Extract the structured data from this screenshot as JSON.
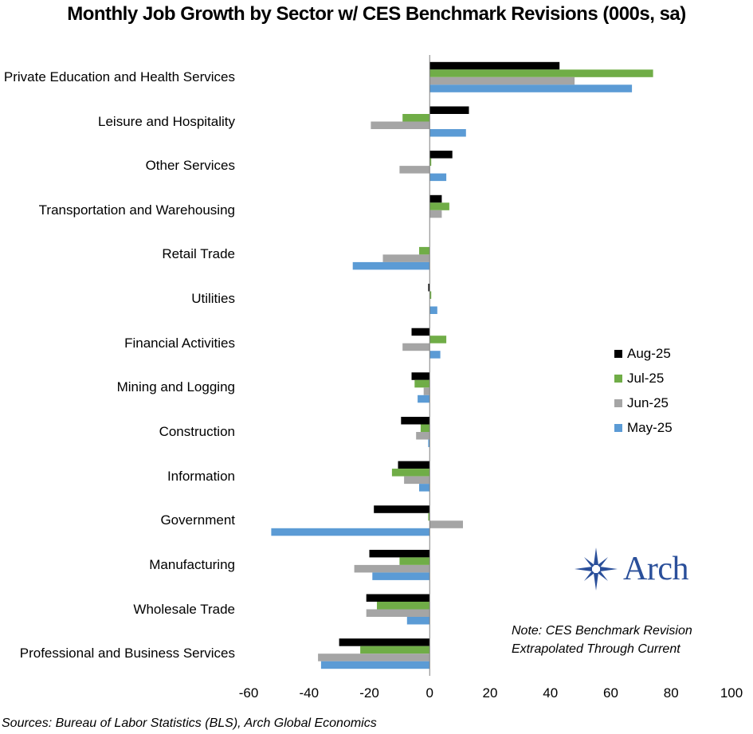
{
  "chart_data": {
    "type": "bar",
    "orientation": "horizontal",
    "title": "Monthly Job Growth by Sector w/ CES Benchmark Revisions (000s, sa)",
    "categories": [
      "Private Education and Health Services",
      "Leisure and Hospitality",
      "Other Services",
      "Transportation and Warehousing",
      "Retail Trade",
      "Utilities",
      "Financial Activities",
      "Mining and Logging",
      "Construction",
      "Information",
      "Government",
      "Manufacturing",
      "Wholesale Trade",
      "Professional and Business Services"
    ],
    "series": [
      {
        "name": "Aug-25",
        "color": "#000000",
        "values": [
          43,
          13,
          7.5,
          4,
          0,
          -0.5,
          -6,
          -6,
          -9.5,
          -10.5,
          -18.5,
          -20,
          -21,
          -30
        ]
      },
      {
        "name": "Jul-25",
        "color": "#70ad47",
        "values": [
          74,
          -9,
          0.5,
          6.5,
          -3.5,
          0.5,
          5.5,
          -5,
          -3,
          -12.5,
          -0.5,
          -10,
          -17.5,
          -23
        ]
      },
      {
        "name": "Jun-25",
        "color": "#a5a5a5",
        "values": [
          48,
          -19.5,
          -10,
          4,
          -15.5,
          0,
          -9,
          -2,
          -4.5,
          -8.5,
          11,
          -25,
          -21,
          -37
        ]
      },
      {
        "name": "May-25",
        "color": "#5b9bd5",
        "values": [
          67,
          12,
          5.5,
          0,
          -25.5,
          2.5,
          3.5,
          -4,
          -0.5,
          -3.5,
          -52.5,
          -19,
          -7.5,
          -36
        ]
      }
    ],
    "xlim": [
      -60,
      100
    ],
    "xticks": [
      -60,
      -40,
      -20,
      0,
      20,
      40,
      60,
      80,
      100
    ],
    "xtick_labels": [
      "-60",
      "-40",
      "-20",
      "0",
      "20",
      "40",
      "60",
      "80",
      "100"
    ],
    "xlabel": "",
    "ylabel": "",
    "legend_position": "right",
    "grid": false
  },
  "legend": {
    "items": [
      {
        "label": "Aug-25",
        "color": "#000000"
      },
      {
        "label": "Jul-25",
        "color": "#70ad47"
      },
      {
        "label": "Jun-25",
        "color": "#a5a5a5"
      },
      {
        "label": "May-25",
        "color": "#5b9bd5"
      }
    ]
  },
  "note": {
    "line1": "Note: CES Benchmark Revision",
    "line2": "Extrapolated Through Current"
  },
  "source": "Sources: Bureau of Labor Statistics (BLS), Arch Global Economics",
  "logo": {
    "text": "Arch",
    "color": "#2a4f9a"
  }
}
